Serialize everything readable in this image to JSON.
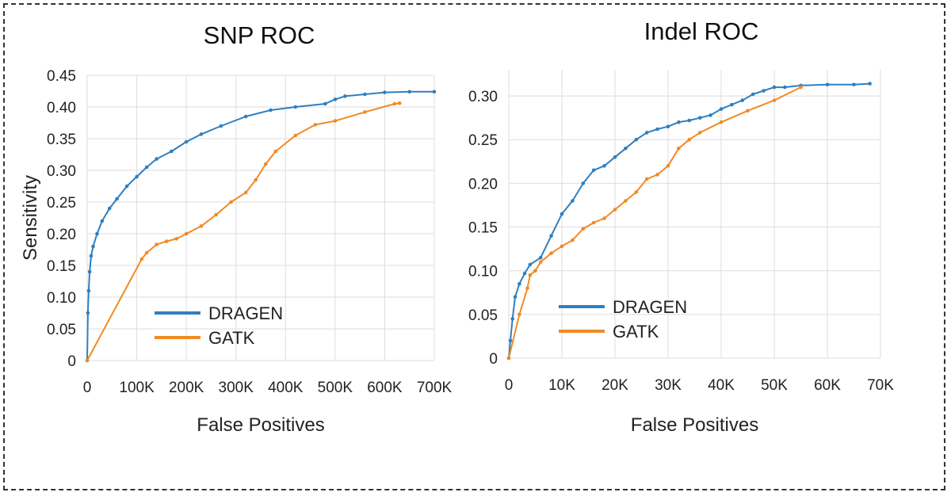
{
  "colors": {
    "dragen": "#2f7fc1",
    "gatk": "#f28a23",
    "grid": "#dedede",
    "frame": "#333333"
  },
  "chart_data": [
    {
      "type": "line",
      "title": "SNP ROC",
      "xlabel": "False Positives",
      "ylabel": "Sensitivity",
      "xlim": [
        0,
        700000
      ],
      "ylim": [
        0,
        0.45
      ],
      "xticks": [
        0,
        100000,
        200000,
        300000,
        400000,
        500000,
        600000,
        700000
      ],
      "xtick_labels": [
        "0",
        "100K",
        "200K",
        "300K",
        "400K",
        "500K",
        "600K",
        "700K"
      ],
      "yticks": [
        0,
        0.05,
        0.1,
        0.15,
        0.2,
        0.25,
        0.3,
        0.35,
        0.4,
        0.45
      ],
      "ytick_labels": [
        "0",
        "0.05",
        "0.10",
        "0.15",
        "0.20",
        "0.25",
        "0.30",
        "0.35",
        "0.40",
        "0.45"
      ],
      "grid": true,
      "legend_position": "bottom-center",
      "series": [
        {
          "name": "DRAGEN",
          "color": "#2f7fc1",
          "points": [
            [
              0,
              0
            ],
            [
              1500,
              0.075
            ],
            [
              3000,
              0.11
            ],
            [
              5000,
              0.14
            ],
            [
              8000,
              0.165
            ],
            [
              12000,
              0.18
            ],
            [
              20000,
              0.2
            ],
            [
              30000,
              0.22
            ],
            [
              45000,
              0.24
            ],
            [
              60000,
              0.255
            ],
            [
              80000,
              0.275
            ],
            [
              100000,
              0.29
            ],
            [
              120000,
              0.305
            ],
            [
              140000,
              0.318
            ],
            [
              170000,
              0.33
            ],
            [
              200000,
              0.345
            ],
            [
              230000,
              0.357
            ],
            [
              270000,
              0.37
            ],
            [
              320000,
              0.385
            ],
            [
              370000,
              0.395
            ],
            [
              420000,
              0.4
            ],
            [
              480000,
              0.405
            ],
            [
              500000,
              0.412
            ],
            [
              520000,
              0.417
            ],
            [
              560000,
              0.42
            ],
            [
              600000,
              0.423
            ],
            [
              650000,
              0.424
            ],
            [
              700000,
              0.424
            ]
          ]
        },
        {
          "name": "GATK",
          "color": "#f28a23",
          "points": [
            [
              0,
              0
            ],
            [
              110000,
              0.16
            ],
            [
              120000,
              0.17
            ],
            [
              140000,
              0.183
            ],
            [
              160000,
              0.188
            ],
            [
              180000,
              0.192
            ],
            [
              200000,
              0.2
            ],
            [
              230000,
              0.212
            ],
            [
              260000,
              0.23
            ],
            [
              290000,
              0.25
            ],
            [
              320000,
              0.265
            ],
            [
              340000,
              0.285
            ],
            [
              360000,
              0.31
            ],
            [
              380000,
              0.33
            ],
            [
              420000,
              0.355
            ],
            [
              460000,
              0.372
            ],
            [
              500000,
              0.378
            ],
            [
              560000,
              0.392
            ],
            [
              620000,
              0.405
            ],
            [
              630000,
              0.406
            ]
          ]
        }
      ]
    },
    {
      "type": "line",
      "title": "Indel ROC",
      "xlabel": "False Positives",
      "ylabel": "",
      "xlim": [
        0,
        70000
      ],
      "ylim": [
        0,
        0.33
      ],
      "xticks": [
        0,
        10000,
        20000,
        30000,
        40000,
        50000,
        60000,
        70000
      ],
      "xtick_labels": [
        "0",
        "10K",
        "20K",
        "30K",
        "40K",
        "50K",
        "60K",
        "70K"
      ],
      "yticks": [
        0,
        0.05,
        0.1,
        0.15,
        0.2,
        0.25,
        0.3
      ],
      "ytick_labels": [
        "0",
        "0.05",
        "0.10",
        "0.15",
        "0.20",
        "0.25",
        "0.30"
      ],
      "grid": true,
      "legend_position": "bottom-center",
      "series": [
        {
          "name": "DRAGEN",
          "color": "#2f7fc1",
          "points": [
            [
              0,
              0
            ],
            [
              300,
              0.02
            ],
            [
              700,
              0.045
            ],
            [
              1200,
              0.07
            ],
            [
              2000,
              0.085
            ],
            [
              3000,
              0.097
            ],
            [
              4000,
              0.107
            ],
            [
              6000,
              0.115
            ],
            [
              8000,
              0.14
            ],
            [
              10000,
              0.165
            ],
            [
              12000,
              0.18
            ],
            [
              14000,
              0.2
            ],
            [
              16000,
              0.215
            ],
            [
              18000,
              0.22
            ],
            [
              20000,
              0.23
            ],
            [
              22000,
              0.24
            ],
            [
              24000,
              0.25
            ],
            [
              26000,
              0.258
            ],
            [
              28000,
              0.262
            ],
            [
              30000,
              0.265
            ],
            [
              32000,
              0.27
            ],
            [
              34000,
              0.272
            ],
            [
              36000,
              0.275
            ],
            [
              38000,
              0.278
            ],
            [
              40000,
              0.285
            ],
            [
              42000,
              0.29
            ],
            [
              44000,
              0.295
            ],
            [
              46000,
              0.302
            ],
            [
              48000,
              0.306
            ],
            [
              50000,
              0.31
            ],
            [
              52000,
              0.31
            ],
            [
              55000,
              0.312
            ],
            [
              60000,
              0.313
            ],
            [
              65000,
              0.313
            ],
            [
              68000,
              0.314
            ]
          ]
        },
        {
          "name": "GATK",
          "color": "#f28a23",
          "points": [
            [
              0,
              0
            ],
            [
              2000,
              0.05
            ],
            [
              3500,
              0.08
            ],
            [
              4000,
              0.095
            ],
            [
              5000,
              0.1
            ],
            [
              6000,
              0.11
            ],
            [
              8000,
              0.12
            ],
            [
              10000,
              0.128
            ],
            [
              12000,
              0.135
            ],
            [
              14000,
              0.148
            ],
            [
              16000,
              0.155
            ],
            [
              18000,
              0.16
            ],
            [
              20000,
              0.17
            ],
            [
              22000,
              0.18
            ],
            [
              24000,
              0.19
            ],
            [
              26000,
              0.205
            ],
            [
              28000,
              0.21
            ],
            [
              30000,
              0.22
            ],
            [
              32000,
              0.24
            ],
            [
              34000,
              0.25
            ],
            [
              36000,
              0.258
            ],
            [
              40000,
              0.27
            ],
            [
              45000,
              0.283
            ],
            [
              50000,
              0.295
            ],
            [
              55000,
              0.31
            ]
          ]
        }
      ]
    }
  ]
}
